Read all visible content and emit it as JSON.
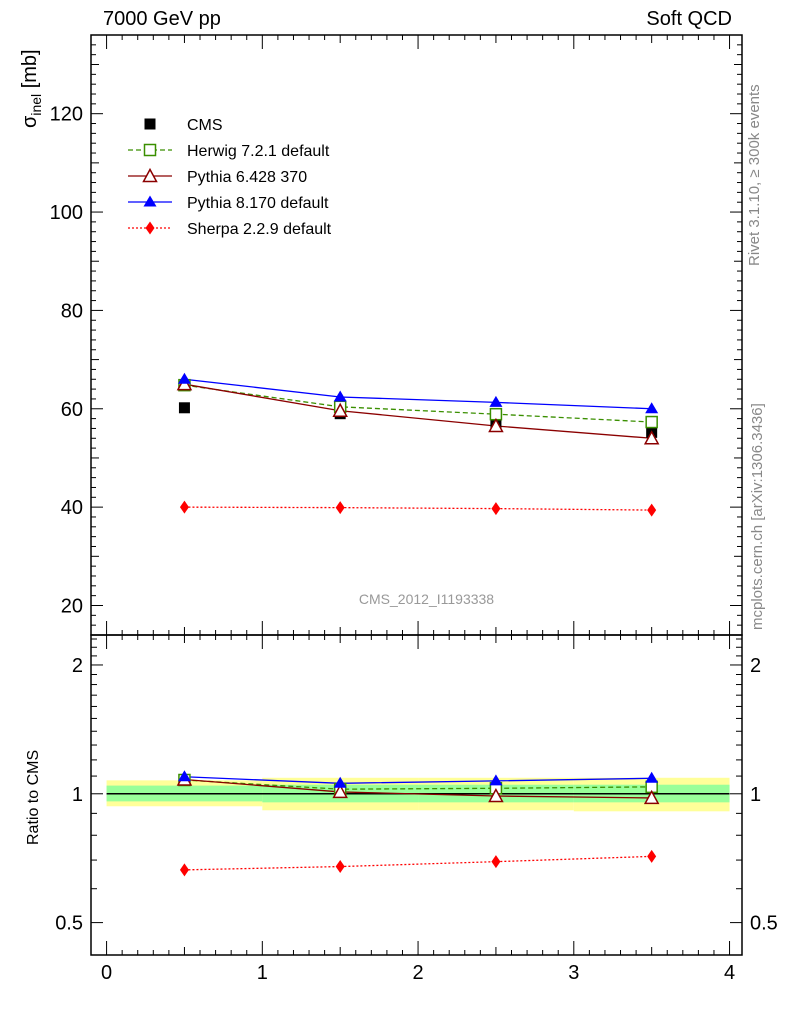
{
  "header": {
    "left": "7000 GeV pp",
    "right": "Soft QCD"
  },
  "side_labels": {
    "rivet": "Rivet 3.1.10, ≥ 300k events",
    "mcplots": "mcplots.cern.ch [arXiv:1306.3436]"
  },
  "chart_data": [
    {
      "type": "scatter",
      "panel": "main",
      "title": "",
      "ylabel": "σ_inel [mb]",
      "ylabel_main": "σ",
      "ylabel_sub": "inel",
      "ylabel_unit": "[mb]",
      "watermark": "CMS_2012_I1193338",
      "xlim": [
        -0.1,
        4.08
      ],
      "ylim": [
        14,
        136
      ],
      "yticks": [
        20,
        40,
        60,
        80,
        100,
        120
      ],
      "x": [
        0.5,
        1.5,
        2.5,
        3.5
      ],
      "series": [
        {
          "name": "CMS",
          "values": [
            60.2,
            59.0,
            57.2,
            55.2
          ],
          "color": "#000000",
          "marker": "square-filled",
          "line": "none"
        },
        {
          "name": "Herwig 7.2.1 default",
          "values": [
            64.8,
            60.4,
            58.9,
            57.3
          ],
          "color": "#3a8f00",
          "marker": "square-open",
          "line": "dashed"
        },
        {
          "name": "Pythia 6.428 370",
          "values": [
            65.0,
            59.6,
            56.5,
            54.0
          ],
          "color": "#8b0000",
          "marker": "triangle-open",
          "line": "solid"
        },
        {
          "name": "Pythia 8.170 default",
          "values": [
            66.0,
            62.4,
            61.3,
            60.0
          ],
          "color": "#0000ff",
          "marker": "triangle-filled",
          "line": "solid"
        },
        {
          "name": "Sherpa 2.2.9 default",
          "values": [
            40.0,
            39.9,
            39.7,
            39.4
          ],
          "color": "#ff0000",
          "marker": "diamond-filled",
          "line": "dotted"
        }
      ]
    },
    {
      "type": "scatter",
      "panel": "ratio",
      "ylabel": "Ratio to CMS",
      "ylim": [
        0.42,
        2.35
      ],
      "yscale": "log",
      "yticks": [
        0.5,
        1,
        2
      ],
      "xlim": [
        -0.1,
        4.08
      ],
      "xticks": [
        0,
        1,
        2,
        3,
        4
      ],
      "x": [
        0.5,
        1.5,
        2.5,
        3.5
      ],
      "bands": [
        {
          "x0": 0.0,
          "x1": 1.0,
          "stat_lo": 0.96,
          "stat_hi": 1.045,
          "tot_lo": 0.935,
          "tot_hi": 1.075
        },
        {
          "x0": 1.0,
          "x1": 2.0,
          "stat_lo": 0.955,
          "stat_hi": 1.05,
          "tot_lo": 0.915,
          "tot_hi": 1.09
        },
        {
          "x0": 2.0,
          "x1": 3.0,
          "stat_lo": 0.955,
          "stat_hi": 1.05,
          "tot_lo": 0.915,
          "tot_hi": 1.09
        },
        {
          "x0": 3.0,
          "x1": 4.0,
          "stat_lo": 0.955,
          "stat_hi": 1.05,
          "tot_lo": 0.91,
          "tot_hi": 1.09
        }
      ],
      "series": [
        {
          "name": "Herwig 7.2.1 default",
          "values": [
            1.077,
            1.025,
            1.03,
            1.038
          ],
          "color": "#3a8f00",
          "marker": "square-open",
          "line": "dashed"
        },
        {
          "name": "Pythia 6.428 370",
          "values": [
            1.08,
            1.01,
            0.988,
            0.978
          ],
          "color": "#8b0000",
          "marker": "triangle-open",
          "line": "solid"
        },
        {
          "name": "Pythia 8.170 default",
          "values": [
            1.096,
            1.058,
            1.072,
            1.087
          ],
          "color": "#0000ff",
          "marker": "triangle-filled",
          "line": "solid"
        },
        {
          "name": "Sherpa 2.2.9 default",
          "values": [
            0.664,
            0.676,
            0.694,
            0.714
          ],
          "color": "#ff0000",
          "marker": "diamond-filled",
          "line": "dotted"
        }
      ]
    }
  ]
}
